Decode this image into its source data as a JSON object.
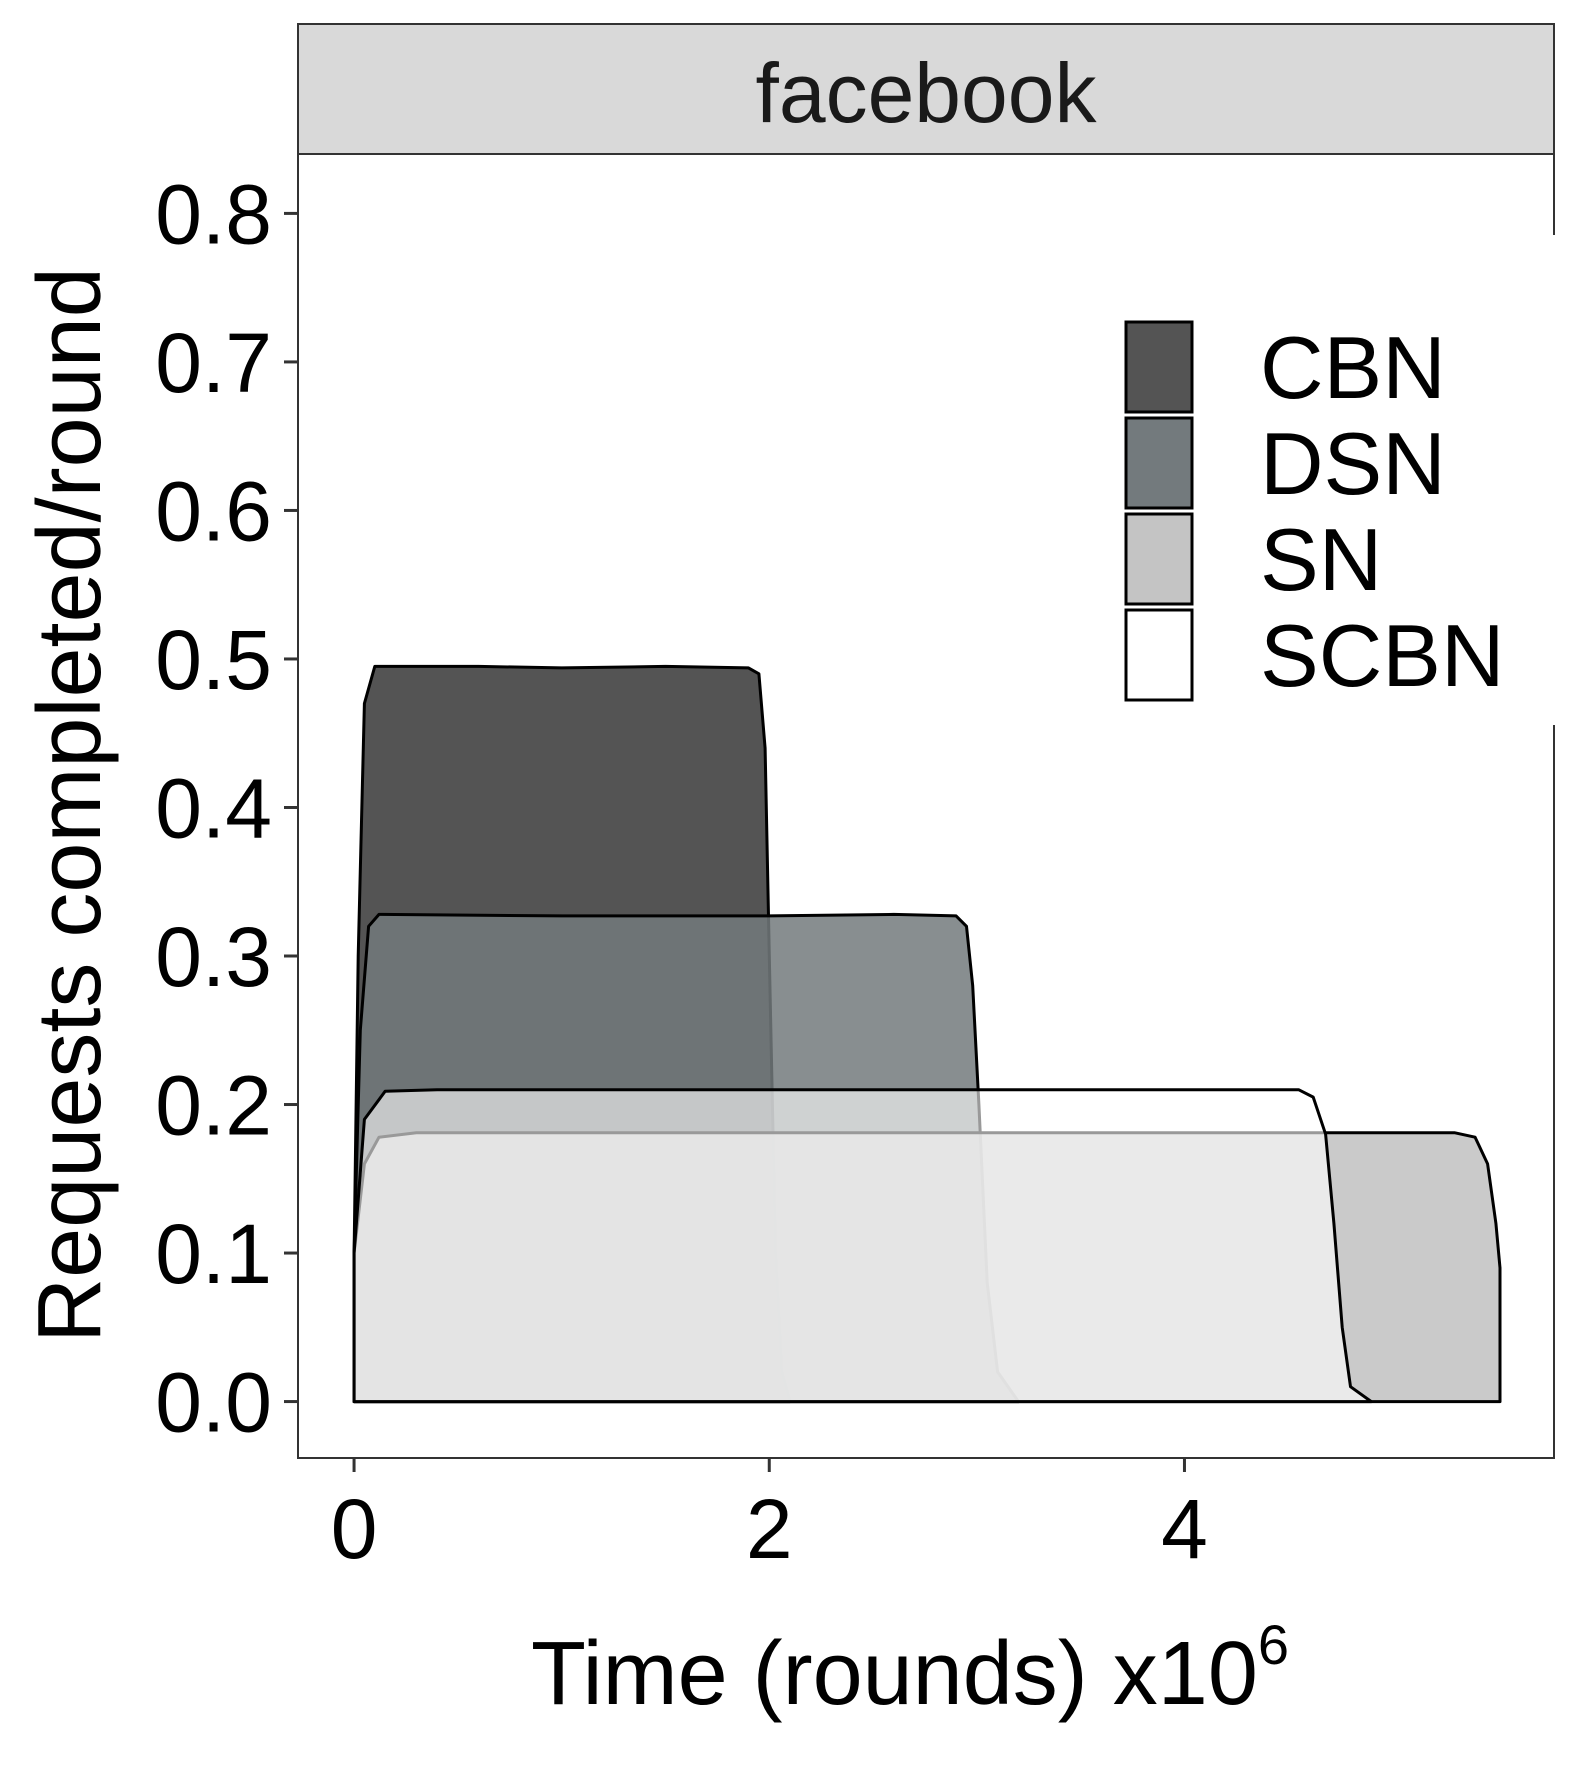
{
  "chart_data": {
    "type": "area",
    "facet_label": "facebook",
    "xlabel": "Time (rounds) x10",
    "xlabel_superscript": "6",
    "ylabel": "Requests completed/round",
    "xlim": [
      -0.27,
      5.78
    ],
    "ylim": [
      -0.038,
      0.84
    ],
    "x_ticks": [
      0,
      2,
      4
    ],
    "x_tick_labels": [
      "0",
      "2",
      "4"
    ],
    "y_ticks": [
      0.0,
      0.1,
      0.2,
      0.3,
      0.4,
      0.5,
      0.6,
      0.7,
      0.8
    ],
    "y_tick_labels": [
      "0.0",
      "0.1",
      "0.2",
      "0.3",
      "0.4",
      "0.5",
      "0.6",
      "0.7",
      "0.8"
    ],
    "grid": false,
    "legend_position": "top-right",
    "series": [
      {
        "name": "CBN",
        "fill": "#545454",
        "fill_opacity": 1,
        "stroke": "#000000",
        "points": [
          [
            0.0,
            0.0
          ],
          [
            0.0,
            0.1
          ],
          [
            0.02,
            0.3
          ],
          [
            0.05,
            0.47
          ],
          [
            0.1,
            0.495
          ],
          [
            0.6,
            0.495
          ],
          [
            1.0,
            0.494
          ],
          [
            1.5,
            0.495
          ],
          [
            1.9,
            0.494
          ],
          [
            1.95,
            0.49
          ],
          [
            1.98,
            0.44
          ],
          [
            2.0,
            0.3
          ],
          [
            2.03,
            0.1
          ],
          [
            2.06,
            0.02
          ],
          [
            2.1,
            0.0
          ]
        ]
      },
      {
        "name": "DSN",
        "fill": "#737a7d",
        "fill_opacity": 0.85,
        "stroke": "#000000",
        "points": [
          [
            0.0,
            0.0
          ],
          [
            0.0,
            0.1
          ],
          [
            0.03,
            0.25
          ],
          [
            0.07,
            0.32
          ],
          [
            0.12,
            0.328
          ],
          [
            1.0,
            0.327
          ],
          [
            2.0,
            0.327
          ],
          [
            2.6,
            0.328
          ],
          [
            2.9,
            0.327
          ],
          [
            2.95,
            0.32
          ],
          [
            2.98,
            0.28
          ],
          [
            3.01,
            0.2
          ],
          [
            3.05,
            0.08
          ],
          [
            3.1,
            0.02
          ],
          [
            3.2,
            0.0
          ]
        ]
      },
      {
        "name": "SN",
        "fill": "#c4c4c4",
        "fill_opacity": 0.9,
        "stroke": "#000000",
        "points": [
          [
            0.0,
            0.0
          ],
          [
            0.0,
            0.1
          ],
          [
            0.05,
            0.16
          ],
          [
            0.12,
            0.178
          ],
          [
            0.3,
            0.181
          ],
          [
            2.0,
            0.181
          ],
          [
            4.0,
            0.181
          ],
          [
            5.3,
            0.181
          ],
          [
            5.4,
            0.178
          ],
          [
            5.46,
            0.16
          ],
          [
            5.5,
            0.12
          ],
          [
            5.52,
            0.09
          ],
          [
            5.52,
            0.0
          ]
        ]
      },
      {
        "name": "SCBN",
        "fill": "#ffffff",
        "fill_opacity": 0.6,
        "stroke": "#000000",
        "points": [
          [
            0.0,
            0.0
          ],
          [
            0.0,
            0.1
          ],
          [
            0.05,
            0.19
          ],
          [
            0.15,
            0.209
          ],
          [
            0.4,
            0.21
          ],
          [
            2.0,
            0.21
          ],
          [
            4.0,
            0.21
          ],
          [
            4.55,
            0.21
          ],
          [
            4.62,
            0.205
          ],
          [
            4.68,
            0.18
          ],
          [
            4.72,
            0.12
          ],
          [
            4.76,
            0.05
          ],
          [
            4.8,
            0.01
          ],
          [
            4.9,
            0.0
          ]
        ]
      }
    ]
  }
}
